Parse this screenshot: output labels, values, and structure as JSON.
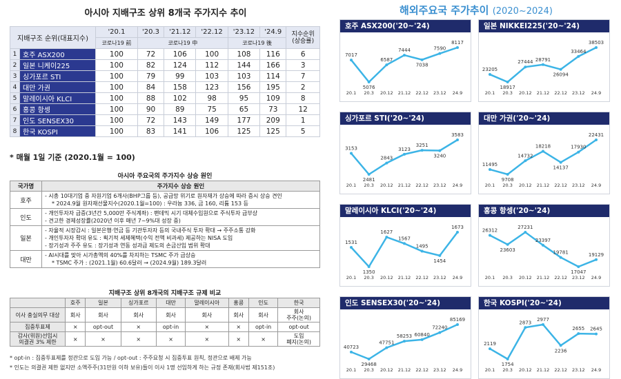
{
  "left_title": "아시아 지배구조 상위 8개국 주가지수 추이",
  "right_title": "해외주요국 주가추이",
  "right_title_years": "(2020~2024)",
  "index_table": {
    "col_first": "지배구조 순위(대표지수)",
    "col_dates": [
      "'20.1",
      "'20.3",
      "'21.12",
      "'22.12",
      "'23.12",
      "'24.9"
    ],
    "col_rank": "지수순위\n(상승률)",
    "sub_labels": [
      "코로나19 前",
      "코로나19 中",
      "코로나19 後"
    ],
    "rows": [
      {
        "no": "1",
        "name": "호주 ASX200",
        "values": [
          "100",
          "72",
          "106",
          "100",
          "108",
          "116"
        ],
        "rank": "6"
      },
      {
        "no": "2",
        "name": "일본 니케이225",
        "values": [
          "100",
          "82",
          "124",
          "112",
          "144",
          "166"
        ],
        "rank": "3"
      },
      {
        "no": "3",
        "name": "싱가포르 STI",
        "values": [
          "100",
          "79",
          "99",
          "103",
          "103",
          "114"
        ],
        "rank": "7"
      },
      {
        "no": "4",
        "name": "대만 가권",
        "values": [
          "100",
          "84",
          "158",
          "123",
          "156",
          "195"
        ],
        "rank": "2"
      },
      {
        "no": "5",
        "name": "말레이시아 KLCI",
        "values": [
          "100",
          "88",
          "102",
          "98",
          "95",
          "109"
        ],
        "rank": "8"
      },
      {
        "no": "6",
        "name": "홍콩 항셍",
        "values": [
          "100",
          "90",
          "89",
          "75",
          "65",
          "73"
        ],
        "rank": "12"
      },
      {
        "no": "7",
        "name": "인도 SENSEX30",
        "values": [
          "100",
          "72",
          "143",
          "149",
          "177",
          "209"
        ],
        "rank": "1"
      },
      {
        "no": "8",
        "name": "한국 KOSPI",
        "values": [
          "100",
          "83",
          "141",
          "106",
          "125",
          "125"
        ],
        "rank": "5"
      }
    ]
  },
  "note1": "* 매월 1일 기준 (2020.1월 = 100)",
  "drivers": {
    "title": "아시아 주요국의 주가지수 상승 원인",
    "col_country": "국가명",
    "col_reason": "주가지수 상승 원인",
    "rows": [
      {
        "country": "호주",
        "lines": [
          "- 시총 10대기업 중 자원기업 6개사(BHP그룹 등), 공급망 위기로 원자재가 상승에 따라 증시 상승 견인",
          "* 2024.9월 원자재선물지수(2020.1월=100) : 우라늄 336, 금 160, 리튬 153 등"
        ]
      },
      {
        "country": "인도",
        "lines": [
          "- 개인투자자 급증(3년간 5,000만 주식계좌) : 팬데믹 시기 대체수입원으로 주식투자 급부상",
          "- 견고한 경제성장률(2020년 이후 매년 7~9%대 성장 중)"
        ]
      },
      {
        "country": "일본",
        "lines": [
          "- 자율적 시장감시 : 일본은행·연금 등 기관투자자 등의 국내주식 투자 확대 → 주주소통 강화",
          "- 개인투자자 확대 유도 : 획기적 세제혜택(수익 전액 비과세) 제공하는 NISA 도입",
          "- 장기성과 주주 유도 : 장기성과 연동 성과급 제도의 손금산입 범위 확대"
        ]
      },
      {
        "country": "대만",
        "lines": [
          "- AI시대를 맞아 시가총액의 40%를 차지하는 TSMC 주가 급상승",
          "* TSMC 주가 : (2021.1월) 60.6달러 → (2024.9월) 189.3달러"
        ]
      }
    ]
  },
  "regulation": {
    "title": "지배구조 상위 8개국의 지배구조 규제 비교",
    "countries": [
      "호주",
      "일본",
      "싱가포르",
      "대만",
      "말레이시아",
      "홍콩",
      "인도",
      "한국"
    ],
    "rows": [
      {
        "label": "이사 충실의무 대상",
        "values": [
          "회사",
          "회사",
          "회사",
          "회사",
          "회사",
          "회사",
          "회사",
          "회사\n주주(논의)"
        ]
      },
      {
        "label": "집중투표제",
        "values": [
          "×",
          "opt-out",
          "×",
          "opt-in",
          "×",
          "×",
          "opt-in",
          "opt-out"
        ]
      },
      {
        "label": "감사(위원)선임시\n의결권 3% 제한",
        "values": [
          "×",
          "×",
          "×",
          "×",
          "×",
          "×",
          "×",
          "도입\n폐지(논의)"
        ]
      }
    ]
  },
  "footnotes": [
    "* opt-in : 집중투표제를 정관으로 도입 가능 / opt-out : 주주요청 시 집중투표 원칙, 정관으로 배제 가능",
    "* 인도는 의결권 제한 없지만 소액주주(31만원 이하 보유)들이 이사 1명 선임하게 하는 규정 존재(회사법 제151조)"
  ],
  "chart_data": [
    {
      "type": "line",
      "title": "호주 ASX200('20~'24)",
      "categories": [
        "20.1",
        "20.3",
        "20.12",
        "21.12",
        "22.12",
        "23.12",
        "24.9"
      ],
      "values": [
        7017,
        5076,
        6587,
        7444,
        7038,
        7590,
        8117
      ],
      "labels": [
        "7017",
        "5076",
        "6587",
        "7444",
        "7038",
        "7590",
        "8117"
      ]
    },
    {
      "type": "line",
      "title": "일본 NIKKEI225('20~'24)",
      "categories": [
        "20.1",
        "20.3",
        "20.12",
        "21.12",
        "22.12",
        "23.12",
        "24.9"
      ],
      "values": [
        23205,
        18917,
        27444,
        28791,
        26094,
        33464,
        38503
      ],
      "labels": [
        "23205",
        "18917",
        "27444",
        "28791",
        "26094",
        "33464",
        "38503"
      ]
    },
    {
      "type": "line",
      "title": "싱가포르 STI('20~'24)",
      "categories": [
        "20.1",
        "20.3",
        "20.12",
        "21.12",
        "22.12",
        "23.12",
        "24.9"
      ],
      "values": [
        3153,
        2481,
        2843,
        3123,
        3251,
        3240,
        3583
      ],
      "labels": [
        "3153",
        "2481",
        "2843",
        "3123",
        "3251",
        "3240",
        "3583"
      ]
    },
    {
      "type": "line",
      "title": "대만 가권('20~'24)",
      "categories": [
        "20.1",
        "20.3",
        "20.12",
        "21.12",
        "22.12",
        "23.12",
        "24.9"
      ],
      "values": [
        11495,
        9708,
        14732,
        18218,
        14137,
        17930,
        22431
      ],
      "labels": [
        "11495",
        "9708",
        "14732",
        "18218",
        "14137",
        "17930",
        "22431"
      ]
    },
    {
      "type": "line",
      "title": "말레이시아 KLCI('20~'24)",
      "categories": [
        "20.1",
        "20.3",
        "20.12",
        "21.12",
        "22.12",
        "23.12",
        "24.9"
      ],
      "values": [
        1531,
        1350,
        1627,
        1567,
        1495,
        1454,
        1673
      ],
      "labels": [
        "1531",
        "1350",
        "1627",
        "1567",
        "1495",
        "1454",
        "1673"
      ]
    },
    {
      "type": "line",
      "title": "홍콩 항셍('20~'24)",
      "categories": [
        "20.1",
        "20.3",
        "20.12",
        "21.12",
        "22.12",
        "23.12",
        "24.9"
      ],
      "values": [
        26312,
        23603,
        27231,
        23397,
        19781,
        17047,
        19129
      ],
      "labels": [
        "26312",
        "23603",
        "27231",
        "23397",
        "19781",
        "17047",
        "19129"
      ]
    },
    {
      "type": "line",
      "title": "인도 SENSEX30('20~'24)",
      "categories": [
        "20.1",
        "20.3",
        "20.12",
        "21.12",
        "22.12",
        "23.12",
        "24.9"
      ],
      "values": [
        40723,
        29468,
        47751,
        58253,
        60840,
        72240,
        85169
      ],
      "labels": [
        "40723",
        "29468",
        "47751",
        "58253",
        "60840",
        "72240",
        "85169"
      ]
    },
    {
      "type": "line",
      "title": "한국 KOSPI('20~'24)",
      "categories": [
        "20.1",
        "20.3",
        "20.12",
        "21.12",
        "22.12",
        "23.12",
        "24.9"
      ],
      "values": [
        2119,
        1754,
        2873,
        2977,
        2236,
        2655,
        2645
      ],
      "labels": [
        "2119",
        "1754",
        "2873",
        "2977",
        "2236",
        "2655",
        "2645"
      ]
    }
  ]
}
